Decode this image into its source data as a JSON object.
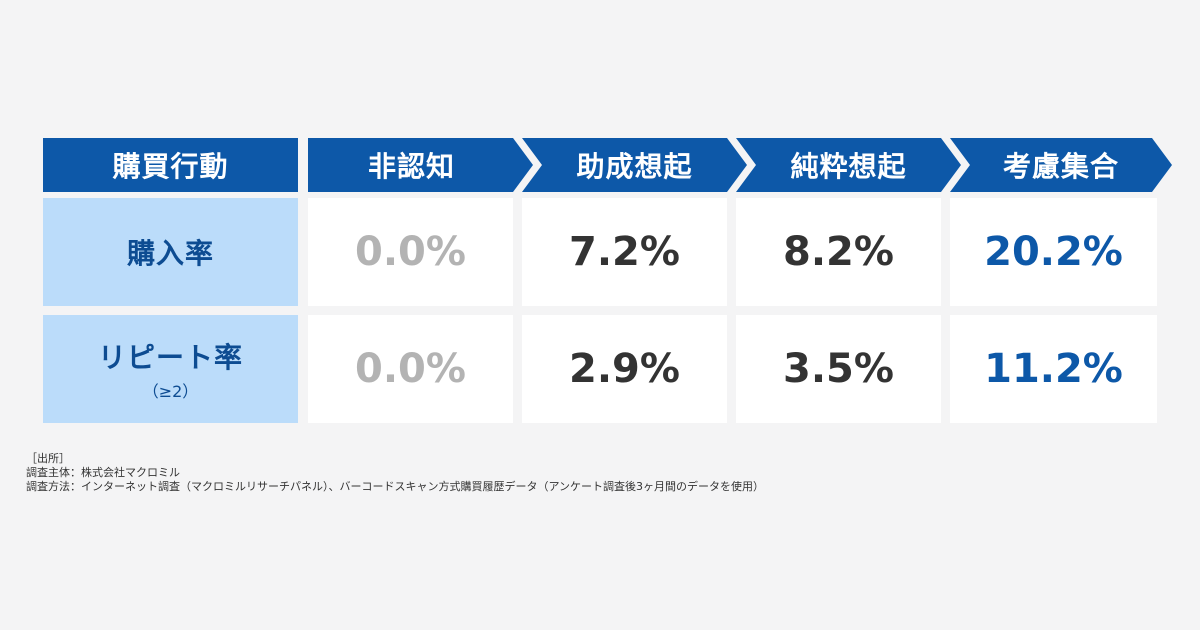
{
  "chart_data": {
    "type": "table",
    "title": "",
    "header_first": "購買行動",
    "stages": [
      "非認知",
      "助成想起",
      "純粋想起",
      "考慮集合"
    ],
    "rows": [
      {
        "label": "購入率",
        "sublabel": "",
        "values": [
          "0.0%",
          "7.2%",
          "8.2%",
          "20.2%"
        ]
      },
      {
        "label": "リピート率",
        "sublabel": "（≥2）",
        "values": [
          "0.0%",
          "2.9%",
          "3.5%",
          "11.2%"
        ]
      }
    ]
  },
  "notes": {
    "source_heading": "［出所］",
    "line1": "調査主体：株式会社マクロミル",
    "line2": "調査方法：インターネット調査（マクロミルリサーチパネル）、バーコードスキャン方式購買履歴データ（アンケート調査後3ヶ月間のデータを使用）"
  },
  "colors": {
    "header": "#0d58a8",
    "row_label_bg": "#bbdcfa",
    "row_label_text": "#0d4c92",
    "value_default": "#333333",
    "value_muted": "#b3b3b3",
    "value_accent": "#0d58a8",
    "background": "#f4f4f5"
  }
}
